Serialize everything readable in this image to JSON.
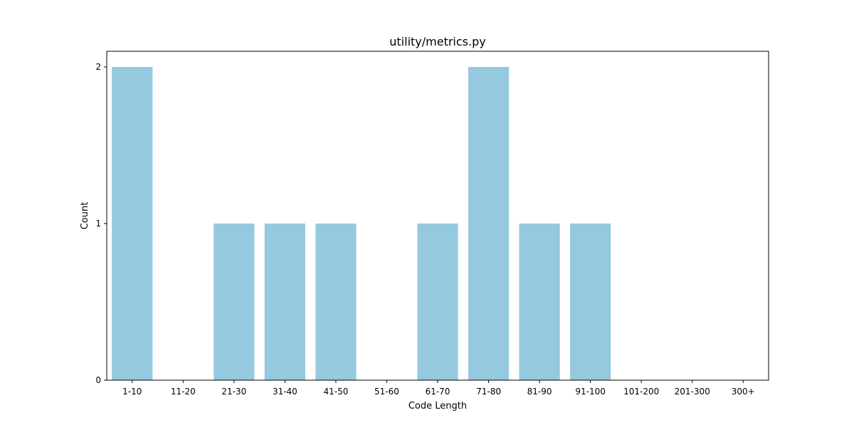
{
  "chart_data": {
    "type": "bar",
    "title": "utility/metrics.py",
    "xlabel": "Code Length",
    "ylabel": "Count",
    "categories": [
      "1-10",
      "11-20",
      "21-30",
      "31-40",
      "41-50",
      "51-60",
      "61-70",
      "71-80",
      "81-90",
      "91-100",
      "101-200",
      "201-300",
      "300+"
    ],
    "values": [
      2,
      0,
      1,
      1,
      1,
      0,
      1,
      2,
      1,
      1,
      0,
      0,
      0
    ],
    "ylim": [
      0,
      2.1
    ],
    "yticks": [
      0,
      1,
      2
    ],
    "grid": false,
    "bar_color": "#95c9df"
  }
}
